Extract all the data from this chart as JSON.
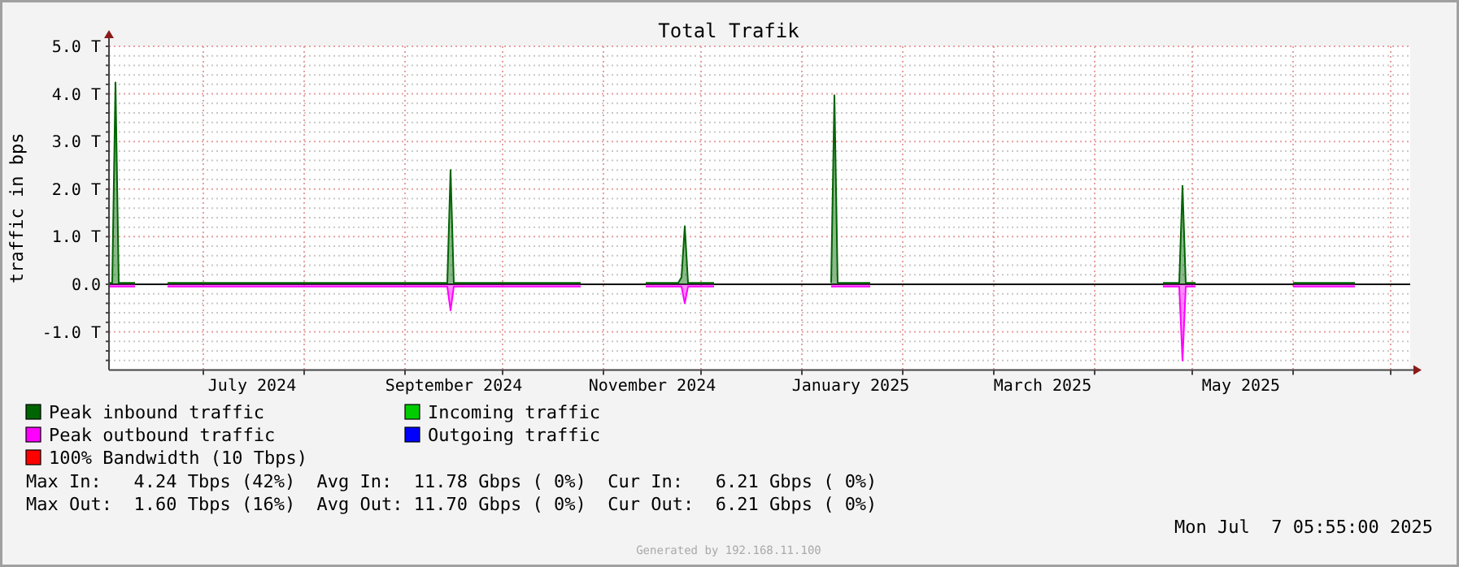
{
  "chart_data": {
    "type": "area",
    "title": "Total Trafik",
    "ylabel": "traffic in bps",
    "x": [
      "2024-06-02",
      "2024-06-03",
      "2024-06-04",
      "2024-06-05",
      "2024-06-10",
      "2024-06-11",
      "2024-06-20",
      "2024-07-01",
      "2024-07-20",
      "2024-08-10",
      "2024-09-01",
      "2024-09-14",
      "2024-09-15",
      "2024-09-16",
      "2024-10-10",
      "2024-10-25",
      "2024-10-26",
      "2024-11-13",
      "2024-11-14",
      "2024-11-24",
      "2024-11-25",
      "2024-11-26",
      "2024-11-27",
      "2024-12-05",
      "2024-12-06",
      "2025-01-09",
      "2025-01-10",
      "2025-01-11",
      "2025-01-12",
      "2025-01-22",
      "2025-01-23",
      "2025-04-22",
      "2025-04-27",
      "2025-04-28",
      "2025-04-29",
      "2025-05-02",
      "2025-05-03",
      "2025-06-01",
      "2025-06-10",
      "2025-06-20"
    ],
    "xlim": [
      "2024-06-02",
      "2025-07-07"
    ],
    "xticks": [
      {
        "value": "2024-07-01",
        "label": null
      },
      {
        "value": "2024-07-16",
        "label": "July 2024"
      },
      {
        "value": "2024-08-01",
        "label": null
      },
      {
        "value": "2024-09-01",
        "label": null
      },
      {
        "value": "2024-09-16",
        "label": "September 2024"
      },
      {
        "value": "2024-10-01",
        "label": null
      },
      {
        "value": "2024-11-01",
        "label": null
      },
      {
        "value": "2024-11-16",
        "label": "November 2024"
      },
      {
        "value": "2024-12-01",
        "label": null
      },
      {
        "value": "2025-01-01",
        "label": null
      },
      {
        "value": "2025-01-16",
        "label": "January 2025"
      },
      {
        "value": "2025-02-01",
        "label": null
      },
      {
        "value": "2025-03-01",
        "label": null
      },
      {
        "value": "2025-03-16",
        "label": "March 2025"
      },
      {
        "value": "2025-04-01",
        "label": null
      },
      {
        "value": "2025-05-01",
        "label": null
      },
      {
        "value": "2025-05-16",
        "label": "May 2025"
      },
      {
        "value": "2025-06-01",
        "label": null
      },
      {
        "value": "2025-07-01",
        "label": null
      }
    ],
    "ylim": [
      -1.8,
      5
    ],
    "yticks": [
      {
        "value": -1.6,
        "label": null
      },
      {
        "value": -1.4,
        "label": null
      },
      {
        "value": -1.2,
        "label": null
      },
      {
        "value": -1,
        "label": "-1.0 T"
      },
      {
        "value": -0.8,
        "label": null
      },
      {
        "value": -0.6,
        "label": null
      },
      {
        "value": -0.4,
        "label": null
      },
      {
        "value": -0.2,
        "label": null
      },
      {
        "value": 0,
        "label": "0.0"
      },
      {
        "value": 0.2,
        "label": null
      },
      {
        "value": 0.4,
        "label": null
      },
      {
        "value": 0.6,
        "label": null
      },
      {
        "value": 0.8,
        "label": null
      },
      {
        "value": 1,
        "label": "1.0 T"
      },
      {
        "value": 1.2,
        "label": null
      },
      {
        "value": 1.4,
        "label": null
      },
      {
        "value": 1.6,
        "label": null
      },
      {
        "value": 1.8,
        "label": null
      },
      {
        "value": 2,
        "label": "2.0 T"
      },
      {
        "value": 2.2,
        "label": null
      },
      {
        "value": 2.4,
        "label": null
      },
      {
        "value": 2.6,
        "label": null
      },
      {
        "value": 2.8,
        "label": null
      },
      {
        "value": 3,
        "label": "3.0 T"
      },
      {
        "value": 3.2,
        "label": null
      },
      {
        "value": 3.4,
        "label": null
      },
      {
        "value": 3.6,
        "label": null
      },
      {
        "value": 3.8,
        "label": null
      },
      {
        "value": 4,
        "label": "4.0 T"
      },
      {
        "value": 4.2,
        "label": null
      },
      {
        "value": 4.4,
        "label": null
      },
      {
        "value": 4.6,
        "label": null
      },
      {
        "value": 4.8,
        "label": null
      },
      {
        "value": 5,
        "label": "5.0 T"
      }
    ],
    "grid": true,
    "legend": "bottom",
    "ref_lines": [
      {
        "axis": "y",
        "value": 0,
        "color": "#000000"
      }
    ],
    "series": [
      {
        "name": "Peak inbound traffic",
        "color": "#006400",
        "values": [
          0.03,
          0.03,
          4.24,
          0.03,
          0.03,
          null,
          0.03,
          0.03,
          0.03,
          0.03,
          0.03,
          0.03,
          2.4,
          0.03,
          0.03,
          0.03,
          null,
          null,
          0.03,
          0.03,
          0.15,
          1.22,
          0.03,
          0.03,
          null,
          null,
          0.03,
          3.97,
          0.03,
          0.03,
          null,
          0.03,
          0.03,
          2.07,
          0.03,
          0.03,
          null,
          0.03,
          0.03,
          0.03
        ]
      },
      {
        "name": "Incoming traffic",
        "color": "#00cc00",
        "values": [
          null,
          null,
          null,
          null,
          null,
          null,
          null,
          null,
          null,
          null,
          null,
          null,
          null,
          null,
          null,
          null,
          null,
          null,
          null,
          null,
          null,
          null,
          null,
          null,
          null,
          null,
          null,
          null,
          null,
          null,
          null,
          null,
          null,
          null,
          null,
          null,
          null,
          null,
          null,
          null
        ]
      },
      {
        "name": "Peak outbound traffic",
        "color": "#ff00ff",
        "values": [
          -0.05,
          -0.05,
          -0.05,
          -0.05,
          -0.05,
          null,
          -0.05,
          -0.05,
          -0.05,
          -0.05,
          -0.05,
          -0.05,
          -0.55,
          -0.05,
          -0.05,
          -0.05,
          null,
          null,
          -0.05,
          -0.05,
          -0.05,
          -0.4,
          -0.05,
          -0.05,
          null,
          null,
          -0.05,
          -0.05,
          -0.05,
          -0.05,
          null,
          -0.05,
          -0.05,
          -1.6,
          -0.05,
          -0.05,
          null,
          -0.05,
          -0.05,
          -0.05
        ]
      },
      {
        "name": "Outgoing traffic",
        "color": "#0000ff",
        "values": [
          null,
          null,
          null,
          null,
          null,
          null,
          null,
          null,
          null,
          null,
          null,
          null,
          null,
          null,
          null,
          null,
          null,
          null,
          null,
          null,
          null,
          null,
          null,
          null,
          null,
          null,
          null,
          null,
          null,
          null,
          null,
          null,
          null,
          null,
          null,
          null,
          null,
          null,
          null,
          null
        ]
      },
      {
        "name": "100% Bandwidth (10 Tbps)",
        "color": "#ff0000",
        "values": [
          null,
          null,
          null,
          null,
          null,
          null,
          null,
          null,
          null,
          null,
          null,
          null,
          null,
          null,
          null,
          null,
          null,
          null,
          null,
          null,
          null,
          null,
          null,
          null,
          null,
          null,
          null,
          null,
          null,
          null,
          null,
          null,
          null,
          null,
          null,
          null,
          null,
          null,
          null,
          null
        ]
      }
    ],
    "annotations": [
      "Max In:   4.24 Tbps (42%)  Avg In:  11.78 Gbps ( 0%)  Cur In:   6.21 Gbps ( 0%)",
      "Max Out:  1.60 Tbps (16%)  Avg Out: 11.70 Gbps ( 0%)  Cur Out:  6.21 Gbps ( 0%)",
      "Mon Jul  7 05:55:00 2025",
      "Generated by 192.168.11.100"
    ]
  }
}
